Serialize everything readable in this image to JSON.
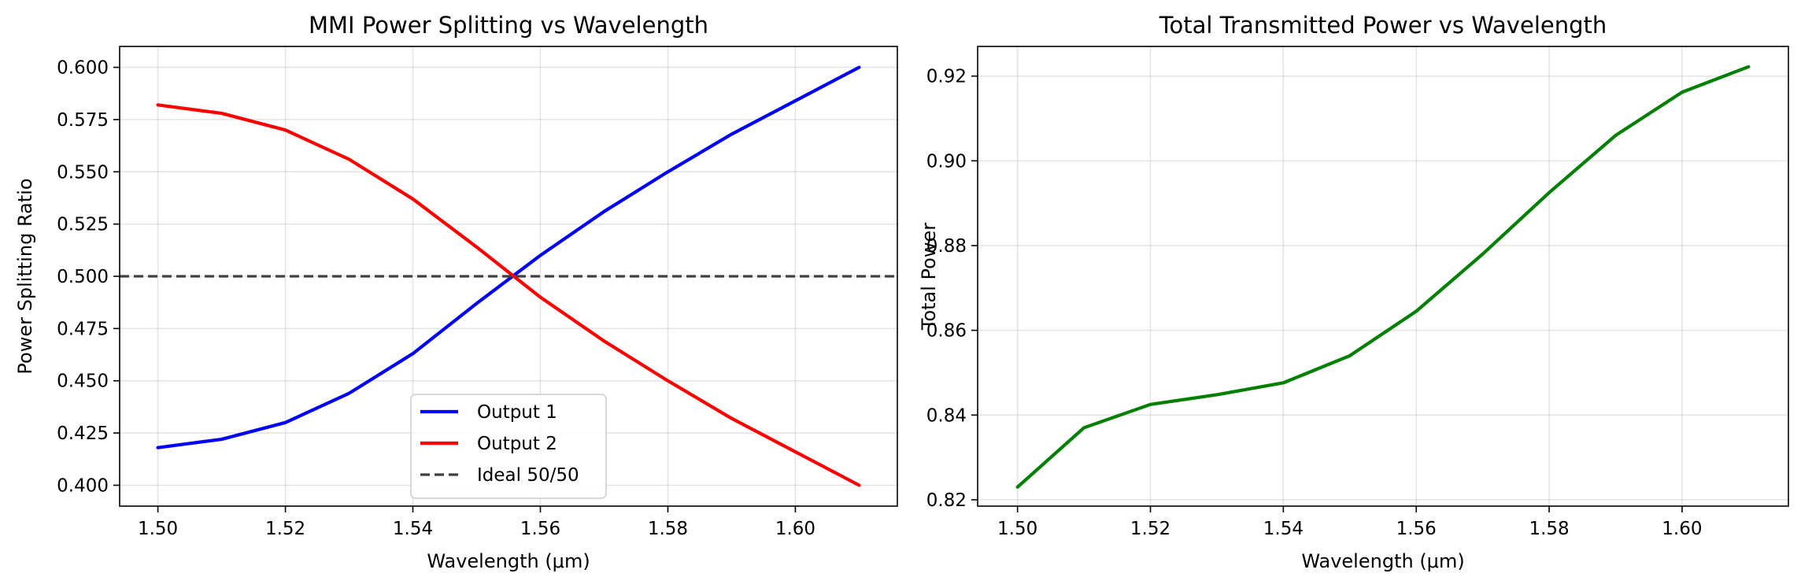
{
  "chart_data": [
    {
      "type": "line",
      "title": "MMI Power Splitting vs Wavelength",
      "xlabel": "Wavelength (μm)",
      "ylabel": "Power Splitting Ratio",
      "xlim": [
        1.494,
        1.616
      ],
      "ylim": [
        0.39,
        0.61
      ],
      "xticks": [
        1.5,
        1.52,
        1.54,
        1.56,
        1.58,
        1.6
      ],
      "xtick_labels": [
        "1.50",
        "1.52",
        "1.54",
        "1.56",
        "1.58",
        "1.60"
      ],
      "yticks": [
        0.4,
        0.425,
        0.45,
        0.475,
        0.5,
        0.525,
        0.55,
        0.575,
        0.6
      ],
      "ytick_labels": [
        "0.400",
        "0.425",
        "0.450",
        "0.475",
        "0.500",
        "0.525",
        "0.550",
        "0.575",
        "0.600"
      ],
      "grid": true,
      "legend_position": "bottom-center",
      "x": [
        1.5,
        1.51,
        1.52,
        1.53,
        1.54,
        1.55,
        1.56,
        1.57,
        1.58,
        1.59,
        1.6,
        1.61
      ],
      "series": [
        {
          "name": "Output 1",
          "color": "#0000ff",
          "style": "solid",
          "values": [
            0.418,
            0.422,
            0.43,
            0.444,
            0.463,
            0.487,
            0.51,
            0.531,
            0.55,
            0.568,
            0.584,
            0.6
          ]
        },
        {
          "name": "Output 2",
          "color": "#ff0000",
          "style": "solid",
          "values": [
            0.582,
            0.578,
            0.57,
            0.556,
            0.537,
            0.514,
            0.49,
            0.469,
            0.45,
            0.432,
            0.416,
            0.4
          ]
        },
        {
          "name": "Ideal 50/50",
          "color": "#404040",
          "style": "dashed",
          "hline": 0.5
        }
      ]
    },
    {
      "type": "line",
      "title": "Total Transmitted Power vs Wavelength",
      "xlabel": "Wavelength (μm)",
      "ylabel": "Total Power",
      "xlim": [
        1.494,
        1.616
      ],
      "ylim": [
        0.8185,
        0.927
      ],
      "xticks": [
        1.5,
        1.52,
        1.54,
        1.56,
        1.58,
        1.6
      ],
      "xtick_labels": [
        "1.50",
        "1.52",
        "1.54",
        "1.56",
        "1.58",
        "1.60"
      ],
      "yticks": [
        0.82,
        0.84,
        0.86,
        0.88,
        0.9,
        0.92
      ],
      "ytick_labels": [
        "0.82",
        "0.84",
        "0.86",
        "0.88",
        "0.90",
        "0.92"
      ],
      "grid": true,
      "x": [
        1.5,
        1.51,
        1.52,
        1.53,
        1.54,
        1.55,
        1.56,
        1.57,
        1.58,
        1.59,
        1.6,
        1.61
      ],
      "series": [
        {
          "name": "",
          "color": "#008000",
          "style": "solid",
          "values": [
            0.823,
            0.837,
            0.8425,
            0.8448,
            0.8476,
            0.854,
            0.8645,
            0.878,
            0.8925,
            0.906,
            0.9162,
            0.9222
          ]
        }
      ]
    }
  ]
}
